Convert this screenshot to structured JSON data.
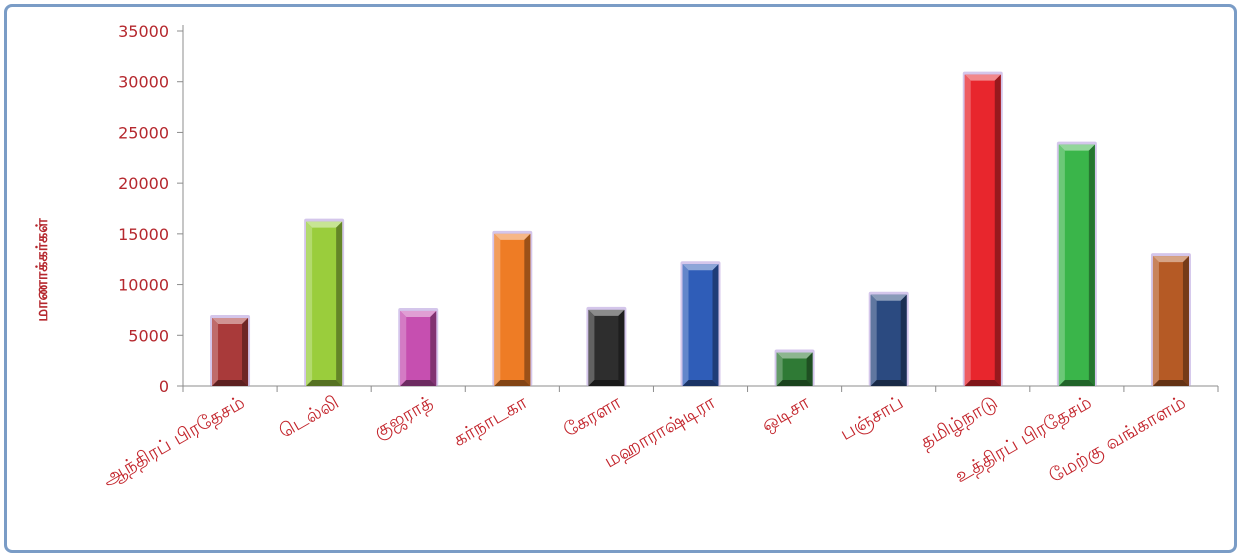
{
  "chart_data": {
    "type": "bar",
    "title": "",
    "xlabel": "",
    "ylabel": "மாணாக்கர்கள்",
    "ylim": [
      0,
      35000
    ],
    "yticks": [
      0,
      5000,
      10000,
      15000,
      20000,
      25000,
      30000,
      35000
    ],
    "grid": false,
    "legend": "none",
    "categories": [
      "ஆந்திரப் பிரதேசம்",
      "டெல்லி",
      "குஜராத்",
      "கர்நாடகா",
      "கேரளா",
      "மஹாராஷ்டிரா",
      "ஒடிசா",
      "பஞ்சாப்",
      "தமிழ்நாடு",
      "உத்திரப் பிரதேசம்",
      "மேற்கு வங்காளம்"
    ],
    "values": [
      6700,
      16200,
      7400,
      15000,
      7500,
      12000,
      3300,
      9000,
      30700,
      23800,
      12800
    ],
    "colors": [
      "#a93a3a",
      "#9acd3c",
      "#c64fb0",
      "#ee7c25",
      "#2e2e2e",
      "#2f5db8",
      "#2f7a35",
      "#2b4a80",
      "#e8262d",
      "#3ab54a",
      "#b55a25"
    ]
  }
}
